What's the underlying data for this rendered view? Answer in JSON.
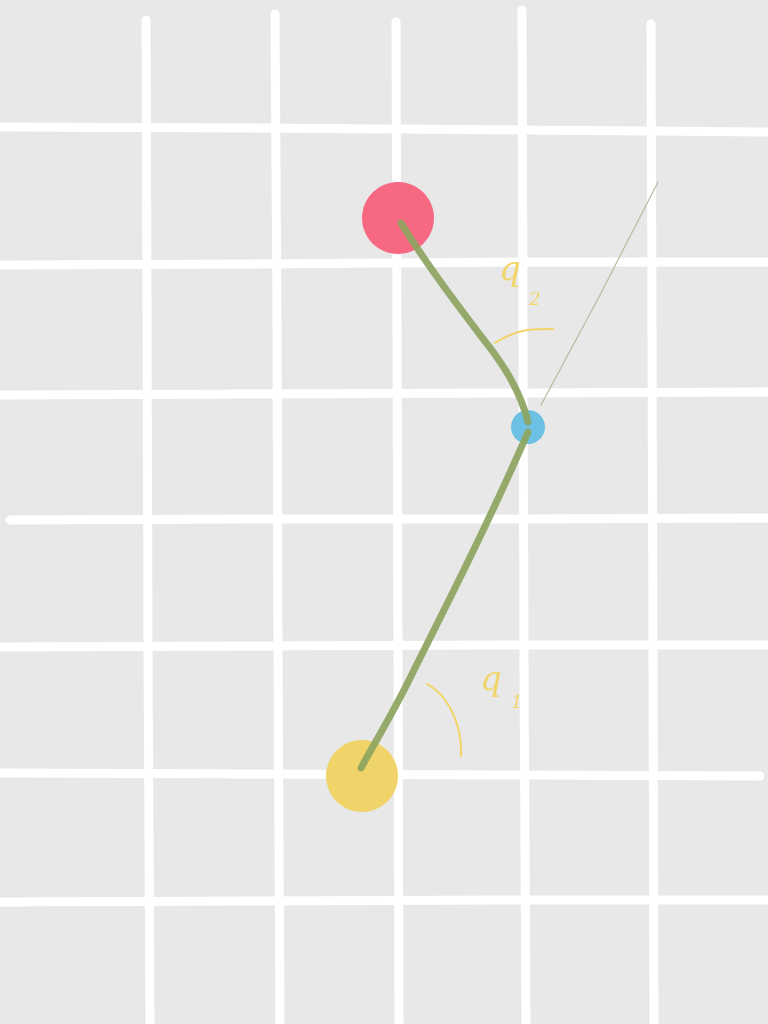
{
  "diagram": {
    "type": "two-link-arm-sketch",
    "colors": {
      "background": "#e8e8e8",
      "grid": "#ffffff",
      "link": "#8da45e",
      "base_joint": "#f0d46a",
      "elbow_joint": "#6cc0e3",
      "end_effector": "#f76982",
      "annotation": "#f2d56a",
      "guide_line": "#b9b9a2"
    },
    "nodes": [
      {
        "name": "base",
        "role": "base joint",
        "color": "yellow"
      },
      {
        "name": "elbow",
        "role": "elbow joint",
        "color": "light blue"
      },
      {
        "name": "end-effector",
        "role": "end effector",
        "color": "pink"
      }
    ],
    "links": [
      {
        "name": "link-1",
        "from": "base",
        "to": "elbow"
      },
      {
        "name": "link-2",
        "from": "elbow",
        "to": "end-effector"
      }
    ],
    "angle_labels": {
      "q1": {
        "letter": "q",
        "subscript": "1"
      },
      "q2": {
        "letter": "q",
        "subscript": "2"
      }
    }
  }
}
